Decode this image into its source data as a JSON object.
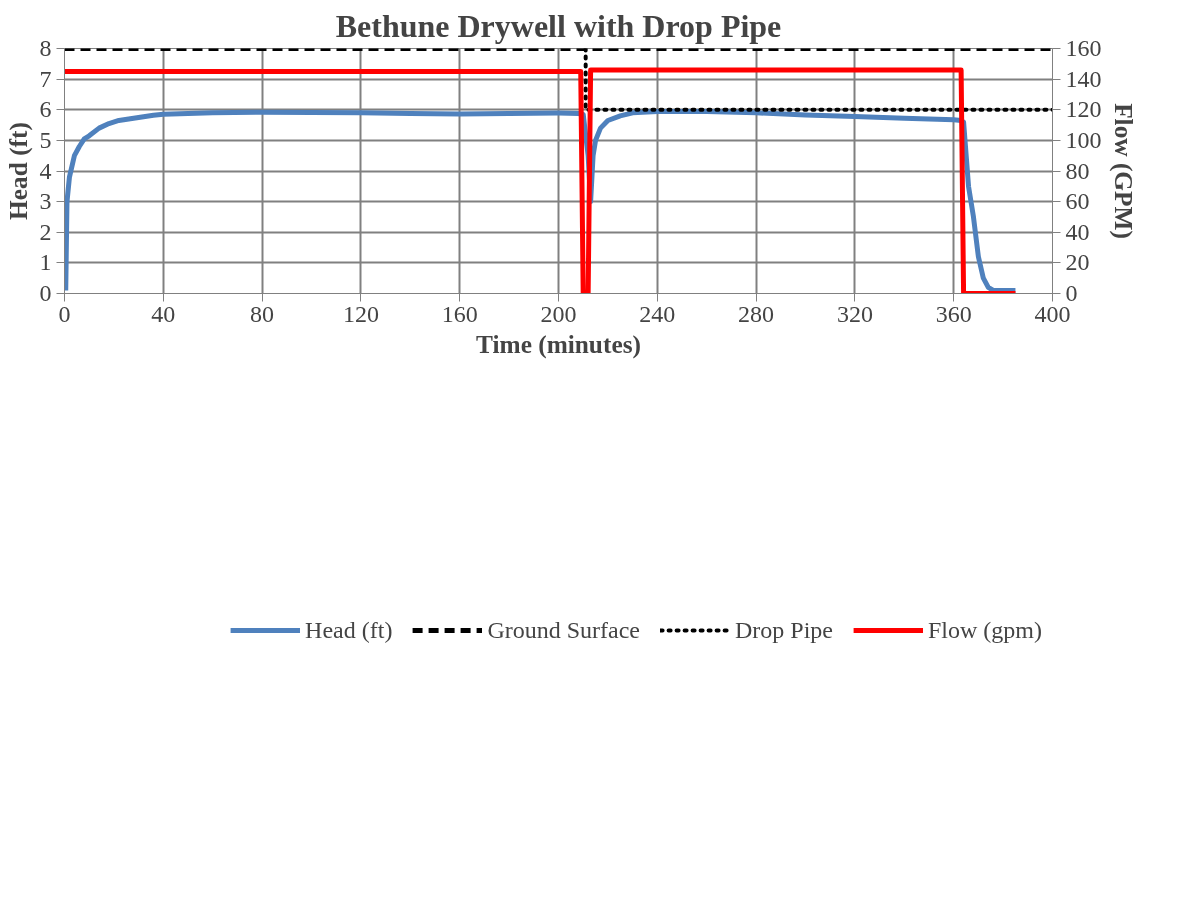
{
  "chart_data": {
    "type": "line",
    "title": "Bethune Drywell with Drop Pipe",
    "xlabel": "Time (minutes)",
    "ylabel": "Head (ft)",
    "y2label": "Flow (GPM)",
    "xlim": [
      0,
      400
    ],
    "xticks": [
      0,
      40,
      80,
      120,
      160,
      200,
      240,
      280,
      320,
      360,
      400
    ],
    "ylim": [
      0,
      8
    ],
    "yticks": [
      0,
      1,
      2,
      3,
      4,
      5,
      6,
      7,
      8
    ],
    "y2lim": [
      0,
      160
    ],
    "y2ticks": [
      0,
      20,
      40,
      60,
      80,
      100,
      120,
      140,
      160
    ],
    "grid": true,
    "legend": "bottom",
    "marker": "none",
    "series": [
      {
        "name": "Head (ft)",
        "color": "#4f81bd",
        "line_style": "solid",
        "x": [
          0.5,
          1,
          2,
          4,
          6,
          8,
          10,
          14,
          18,
          22,
          26,
          30,
          36,
          40,
          50,
          60,
          80,
          100,
          120,
          140,
          160,
          180,
          200,
          208,
          210,
          212,
          213,
          214,
          215,
          217,
          220,
          225,
          230,
          240,
          260,
          280,
          300,
          320,
          340,
          360,
          363,
          364,
          366,
          368,
          370,
          372,
          374,
          376,
          385
        ],
        "values": [
          0.1,
          3.0,
          3.8,
          4.5,
          4.8,
          5.05,
          5.15,
          5.4,
          5.55,
          5.65,
          5.7,
          5.75,
          5.82,
          5.85,
          5.88,
          5.9,
          5.92,
          5.91,
          5.9,
          5.88,
          5.86,
          5.88,
          5.89,
          5.88,
          5.85,
          4.5,
          3.0,
          4.5,
          5.0,
          5.4,
          5.65,
          5.8,
          5.9,
          5.94,
          5.94,
          5.9,
          5.83,
          5.78,
          5.72,
          5.67,
          5.65,
          5.6,
          3.5,
          2.5,
          1.2,
          0.5,
          0.2,
          0.1,
          0.1
        ]
      },
      {
        "name": "Ground Surface",
        "color": "#000000",
        "line_style": "dashed",
        "x": [
          0,
          400
        ],
        "values": [
          8,
          8
        ]
      },
      {
        "name": "Drop Pipe",
        "color": "#000000",
        "line_style": "dotted",
        "x": [
          211,
          211,
          400
        ],
        "values": [
          8,
          6,
          6
        ]
      },
      {
        "name": "Flow (gpm)",
        "color": "#ff0000",
        "line_style": "solid",
        "axis": "y2",
        "x": [
          0,
          209,
          210,
          212,
          213,
          363,
          364,
          385
        ],
        "values": [
          145,
          145,
          0,
          0,
          146,
          146,
          0,
          0
        ]
      }
    ]
  }
}
